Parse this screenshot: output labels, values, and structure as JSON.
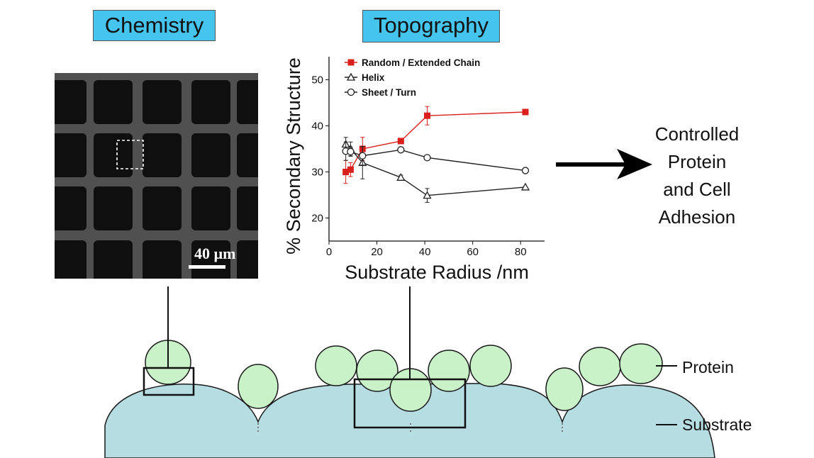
{
  "labels": {
    "chemistry": "Chemistry",
    "topography": "Topography"
  },
  "micrograph": {
    "scale_bar": "40 µm"
  },
  "outcome": {
    "lines": [
      "Controlled",
      "Protein",
      "and Cell",
      "Adhesion"
    ]
  },
  "callouts": {
    "protein": "Protein",
    "substrate": "Substrate"
  },
  "colors": {
    "label_box": "#45c4ee",
    "protein_fill": "#c9f2c9",
    "substrate_fill": "#b6dde2",
    "series_red": "#d9201c"
  },
  "chart_data": {
    "type": "line",
    "xlabel": "Substrate Radius /nm",
    "ylabel": "% Secondary Structure",
    "xlim": [
      0,
      90
    ],
    "ylim": [
      15,
      55
    ],
    "xticks": [
      0,
      20,
      40,
      60,
      80
    ],
    "yticks": [
      20,
      30,
      40,
      50
    ],
    "legend_position": "top-left",
    "series": [
      {
        "name": "Random / Extended Chain",
        "marker": "square",
        "color": "#d9201c",
        "x": [
          7,
          9,
          14,
          30,
          41,
          82
        ],
        "y": [
          30,
          30.5,
          35,
          36.7,
          42.2,
          43
        ],
        "err": [
          2.5,
          1.5,
          2.5,
          0.5,
          2,
          0
        ]
      },
      {
        "name": "Helix",
        "marker": "triangle",
        "color": "#222222",
        "x": [
          7,
          9,
          14,
          30,
          41,
          82
        ],
        "y": [
          36,
          35,
          32,
          28.8,
          24.9,
          26.7
        ],
        "err": [
          1.5,
          1.5,
          3.5,
          0.5,
          1.5,
          0
        ]
      },
      {
        "name": "Sheet / Turn",
        "marker": "circle",
        "color": "#222222",
        "x": [
          7,
          9,
          14,
          30,
          41,
          82
        ],
        "y": [
          34.5,
          34.4,
          33.5,
          34.8,
          33.1,
          30.3
        ],
        "err": [
          2,
          1,
          2,
          0.5,
          0.5,
          0
        ]
      }
    ]
  }
}
